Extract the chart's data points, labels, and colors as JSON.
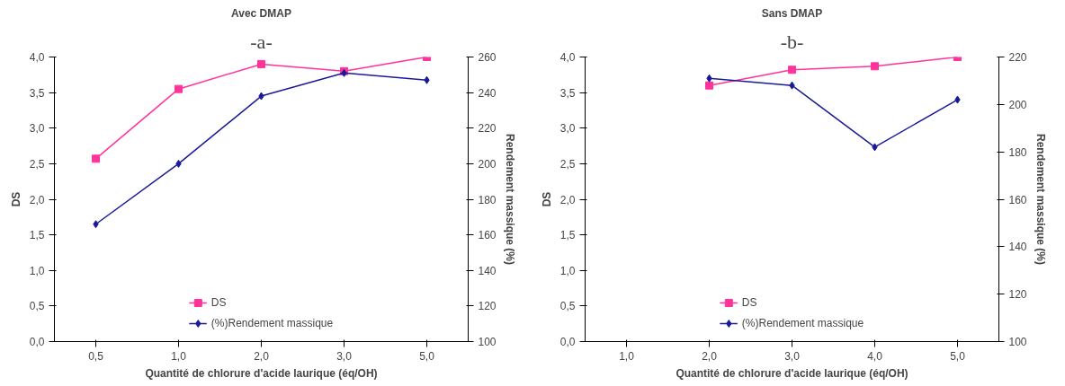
{
  "chart_data": [
    {
      "type": "line",
      "annotations": [
        "-a-"
      ],
      "title": "Avec DMAP",
      "xlabel": "Quantité de chlorure d'acide laurique (éq/OH)",
      "ylabel": "DS",
      "y2label": "Rendement massique (%)",
      "categories": [
        "0,5",
        "1,0",
        "2,0",
        "3,0",
        "5,0"
      ],
      "series": [
        {
          "name": "DS",
          "color": "#ff3399",
          "marker": "square",
          "values": [
            2.57,
            3.55,
            3.9,
            3.8,
            4.0
          ]
        },
        {
          "name": "(%)Rendement massique",
          "color": "#1a1a99",
          "marker": "diamond",
          "axis": "y2",
          "values": [
            166,
            200,
            238,
            251,
            247
          ]
        }
      ],
      "ylim": [
        0,
        4
      ],
      "yticks": [
        {
          "value": 0,
          "label": "0,0"
        },
        {
          "value": 0.5,
          "label": "0,5"
        },
        {
          "value": 1,
          "label": "1,0"
        },
        {
          "value": 1.5,
          "label": "1,5"
        },
        {
          "value": 2,
          "label": "2,0"
        },
        {
          "value": 2.5,
          "label": "2,5"
        },
        {
          "value": 3,
          "label": "3,0"
        },
        {
          "value": 3.5,
          "label": "3,5"
        },
        {
          "value": 4,
          "label": "4,0"
        }
      ],
      "y2lim": [
        100,
        260
      ],
      "y2ticks": [
        100,
        120,
        140,
        160,
        180,
        200,
        220,
        240,
        260
      ],
      "grid": false,
      "legend": "bottom",
      "line_style": "solid"
    },
    {
      "type": "line",
      "annotations": [
        "-b-"
      ],
      "title": "Sans DMAP",
      "xlabel": "Quantité de chlorure d'acide laurique (éq/OH)",
      "ylabel": "DS",
      "y2label": "Rendement massique (%)",
      "categories": [
        "1,0",
        "2,0",
        "3,0",
        "4,0",
        "5,0"
      ],
      "series": [
        {
          "name": "DS",
          "color": "#ff3399",
          "marker": "square",
          "values": [
            null,
            3.6,
            3.82,
            3.87,
            4.0
          ]
        },
        {
          "name": "(%)Rendement massique",
          "color": "#1a1a99",
          "marker": "diamond",
          "axis": "y2",
          "values": [
            null,
            211,
            208,
            182,
            202
          ]
        }
      ],
      "ylim": [
        0,
        4
      ],
      "yticks": [
        {
          "value": 0,
          "label": "0,0"
        },
        {
          "value": 0.5,
          "label": "0,5"
        },
        {
          "value": 1,
          "label": "1,0"
        },
        {
          "value": 1.5,
          "label": "1,5"
        },
        {
          "value": 2,
          "label": "2,0"
        },
        {
          "value": 2.5,
          "label": "2,5"
        },
        {
          "value": 3,
          "label": "3,0"
        },
        {
          "value": 3.5,
          "label": "3,5"
        },
        {
          "value": 4,
          "label": "4,0"
        }
      ],
      "y2lim": [
        100,
        220
      ],
      "y2ticks": [
        100,
        120,
        140,
        160,
        180,
        200,
        220
      ],
      "grid": false,
      "legend": "bottom",
      "line_style": "solid"
    }
  ]
}
